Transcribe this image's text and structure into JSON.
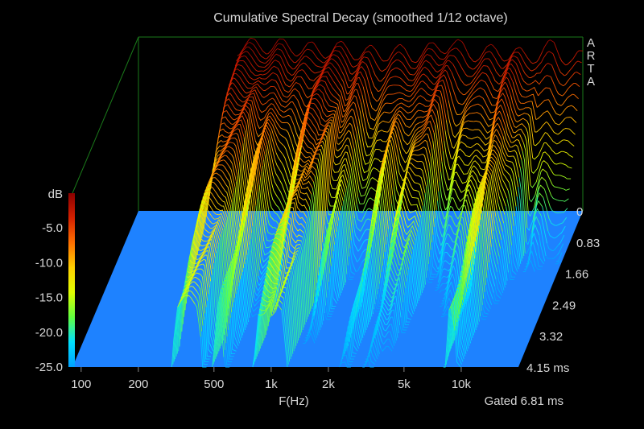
{
  "chart_data": {
    "type": "waterfall",
    "title": "Cumulative Spectral Decay (smoothed 1/12 octave)",
    "brand": "ARTA",
    "xlabel": "F(Hz)",
    "x_scale": "log",
    "x_ticks": [
      "100",
      "200",
      "500",
      "1k",
      "2k",
      "5k",
      "10k"
    ],
    "x_tick_values": [
      100,
      200,
      500,
      1000,
      2000,
      5000,
      10000
    ],
    "xlim": [
      90,
      20000
    ],
    "y_axis_label": "dB",
    "y_ticks": [
      "-5.0",
      "-10.0",
      "-15.0",
      "-20.0",
      "-25.0"
    ],
    "y_tick_values": [
      -5,
      -10,
      -15,
      -20,
      -25
    ],
    "ylim": [
      -25,
      0
    ],
    "z_axis_label": "ms",
    "z_ticks": [
      "0",
      "0.83",
      "1.66",
      "2.49",
      "3.32",
      "4.15 ms"
    ],
    "z_tick_values": [
      0,
      0.83,
      1.66,
      2.49,
      3.32,
      4.15
    ],
    "gate_note": "Gated 6.81 ms",
    "data_start_hz": 300,
    "slice_count": 60,
    "initial_response_db": [
      {
        "f": 300,
        "db": -1.5
      },
      {
        "f": 400,
        "db": -1.2
      },
      {
        "f": 600,
        "db": -1.5
      },
      {
        "f": 800,
        "db": -2.0
      },
      {
        "f": 1000,
        "db": -1.7
      },
      {
        "f": 1300,
        "db": -2.2
      },
      {
        "f": 1700,
        "db": -2.5
      },
      {
        "f": 2000,
        "db": -2.1
      },
      {
        "f": 2500,
        "db": -2.6
      },
      {
        "f": 3000,
        "db": -2.2
      },
      {
        "f": 3500,
        "db": -1.4
      },
      {
        "f": 4000,
        "db": -1.0
      },
      {
        "f": 4500,
        "db": -1.6
      },
      {
        "f": 5000,
        "db": -2.3
      },
      {
        "f": 6000,
        "db": -2.5
      },
      {
        "f": 7000,
        "db": -2.0
      },
      {
        "f": 8000,
        "db": -2.4
      },
      {
        "f": 9000,
        "db": -2.6
      },
      {
        "f": 10000,
        "db": -2.9
      },
      {
        "f": 12000,
        "db": -2.4
      },
      {
        "f": 14000,
        "db": -1.3
      },
      {
        "f": 16000,
        "db": -2.8
      },
      {
        "f": 18000,
        "db": -3.6
      },
      {
        "f": 20000,
        "db": -2.8
      }
    ],
    "colorbar": [
      "#8b0000",
      "#d42000",
      "#ff7000",
      "#ffd000",
      "#e0ff00",
      "#60ff40",
      "#00e0ff",
      "#00a0ff"
    ],
    "floor_color": "#1e82ff",
    "frame_color": "#1a7a1a"
  }
}
